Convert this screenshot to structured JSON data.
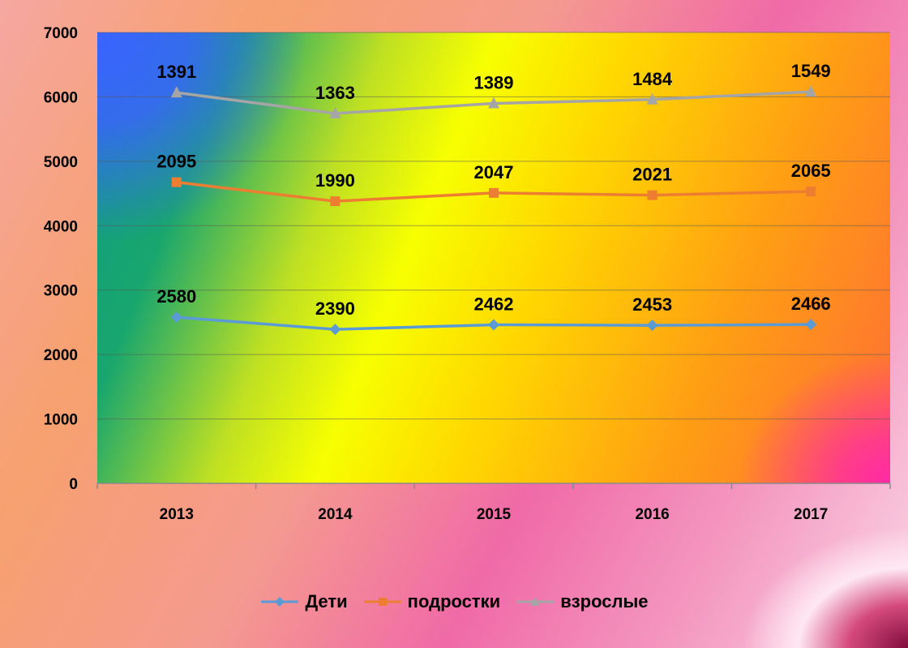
{
  "chart_data": {
    "type": "line",
    "title": "",
    "xlabel": "",
    "ylabel": "",
    "categories": [
      "2013",
      "2014",
      "2015",
      "2016",
      "2017"
    ],
    "ylim": [
      0,
      7000
    ],
    "yticks": [
      "0",
      "1000",
      "2000",
      "3000",
      "4000",
      "5000",
      "6000",
      "7000"
    ],
    "stacked": true,
    "grid": true,
    "legend_position": "bottom",
    "series": [
      {
        "name": "Дети",
        "color": "#5b9bd5",
        "marker": "diamond",
        "values": [
          2580,
          2390,
          2462,
          2453,
          2466
        ],
        "cumulative": [
          2580,
          2390,
          2462,
          2453,
          2466
        ],
        "labels": [
          "2580",
          "2390",
          "2462",
          "2453",
          "2466"
        ]
      },
      {
        "name": "подростки",
        "color": "#ed7d31",
        "marker": "square",
        "values": [
          2095,
          1990,
          2047,
          2021,
          2065
        ],
        "cumulative": [
          4675,
          4380,
          4509,
          4474,
          4531
        ],
        "labels": [
          "2095",
          "1990",
          "2047",
          "2021",
          "2065"
        ]
      },
      {
        "name": "взрослые",
        "color": "#a5a5a5",
        "marker": "triangle",
        "values": [
          1391,
          1363,
          1389,
          1484,
          1549
        ],
        "cumulative": [
          6066,
          5743,
          5898,
          5958,
          6080
        ],
        "labels": [
          "1391",
          "1363",
          "1389",
          "1484",
          "1549"
        ]
      }
    ]
  }
}
